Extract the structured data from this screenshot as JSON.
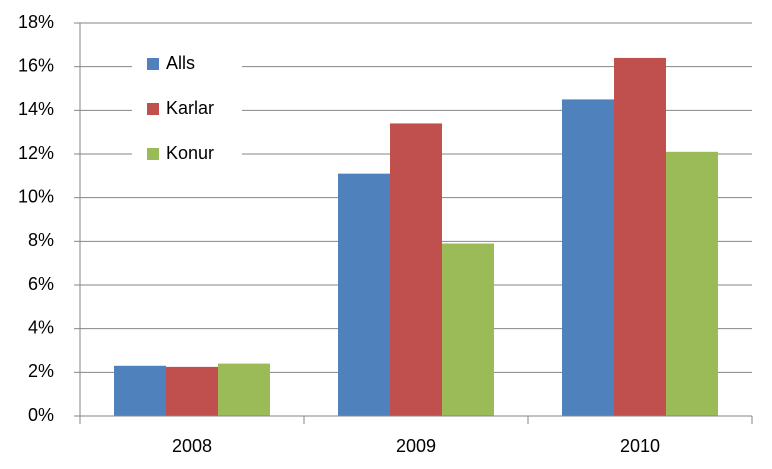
{
  "chart_data": {
    "type": "bar",
    "categories": [
      "2008",
      "2009",
      "2010"
    ],
    "series": [
      {
        "name": "Alls",
        "color": "#4f81bd",
        "values": [
          2.3,
          11.1,
          14.5
        ]
      },
      {
        "name": "Karlar",
        "color": "#c0504d",
        "values": [
          2.25,
          13.4,
          16.4
        ]
      },
      {
        "name": "Konur",
        "color": "#9bbb59",
        "values": [
          2.4,
          7.9,
          12.1
        ]
      }
    ],
    "ylim": [
      0,
      18
    ],
    "yticks": [
      {
        "value": 0,
        "label": "0%"
      },
      {
        "value": 2,
        "label": "2%"
      },
      {
        "value": 4,
        "label": "4%"
      },
      {
        "value": 6,
        "label": "6%"
      },
      {
        "value": 8,
        "label": "8%"
      },
      {
        "value": 10,
        "label": "10%"
      },
      {
        "value": 12,
        "label": "12%"
      },
      {
        "value": 14,
        "label": "14%"
      },
      {
        "value": 16,
        "label": "16%"
      },
      {
        "value": 18,
        "label": "18%"
      }
    ],
    "grid": true,
    "legend": "upper left"
  }
}
